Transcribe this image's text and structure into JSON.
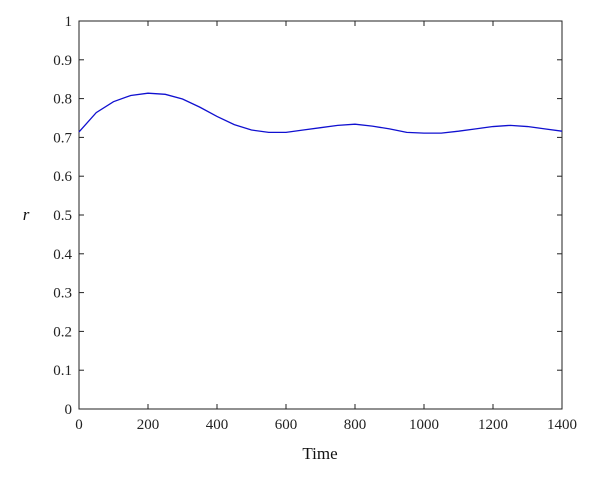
{
  "chart_data": {
    "type": "line",
    "title": "",
    "xlabel": "Time",
    "ylabel": "r",
    "xlim": [
      0,
      1400
    ],
    "ylim": [
      0,
      1
    ],
    "xticks": [
      0,
      200,
      400,
      600,
      800,
      1000,
      1200,
      1400
    ],
    "yticks": [
      0,
      0.1,
      0.2,
      0.3,
      0.4,
      0.5,
      0.6,
      0.7,
      0.8,
      0.9,
      1
    ],
    "grid": false,
    "legend": "none",
    "series": [
      {
        "color": "#1010d0",
        "x": [
          0,
          50,
          100,
          150,
          200,
          250,
          300,
          350,
          400,
          450,
          500,
          550,
          600,
          650,
          700,
          750,
          800,
          850,
          900,
          950,
          1000,
          1050,
          1100,
          1150,
          1200,
          1250,
          1300,
          1350,
          1400
        ],
        "y": [
          0.714,
          0.764,
          0.792,
          0.808,
          0.814,
          0.811,
          0.799,
          0.778,
          0.754,
          0.733,
          0.719,
          0.713,
          0.713,
          0.719,
          0.725,
          0.731,
          0.734,
          0.729,
          0.722,
          0.713,
          0.711,
          0.711,
          0.716,
          0.722,
          0.728,
          0.731,
          0.728,
          0.722,
          0.716
        ]
      }
    ]
  }
}
